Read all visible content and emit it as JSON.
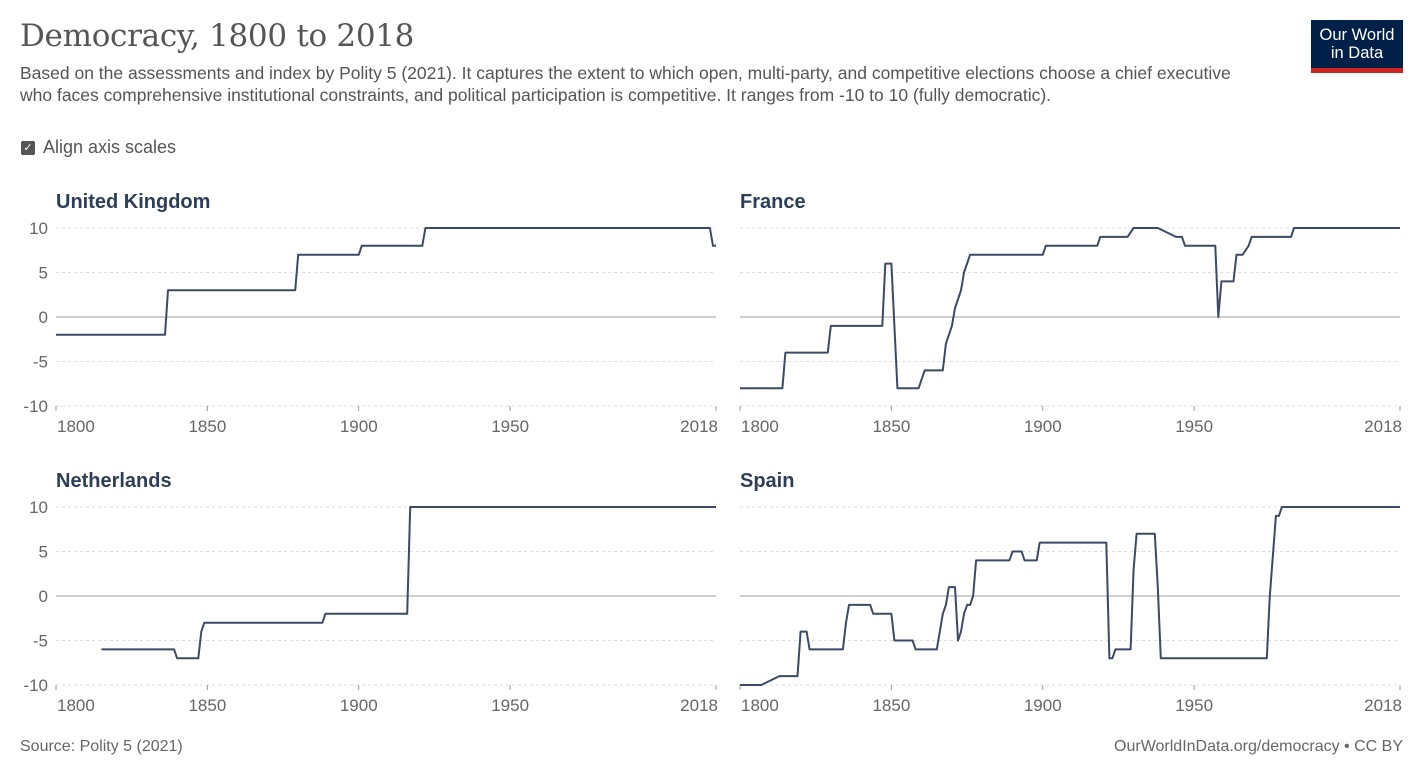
{
  "header": {
    "title": "Democracy, 1800 to 2018",
    "subtitle": "Based on the assessments and index by Polity 5 (2021). It captures the extent to which open, multi-party, and competitive elections choose a chief executive who faces comprehensive institutional constraints, and political participation is competitive. It ranges from -10 to 10 (fully democratic).",
    "logo_line1": "Our World",
    "logo_line2": "in Data"
  },
  "controls": {
    "align_label": "Align axis scales",
    "align_checked": true
  },
  "footer": {
    "source": "Source: Polity 5 (2021)",
    "link": "OurWorldInData.org/democracy • CC BY"
  },
  "colors": {
    "line": "#3c4b63",
    "grid": "#dddddd",
    "zero": "#a0a0a0",
    "axis_text": "#666666",
    "panel_title": "#2d3e58"
  },
  "chart_data": [
    {
      "type": "line",
      "title": "United Kingdom",
      "xlim": [
        1800,
        2018
      ],
      "ylim": [
        -10,
        10
      ],
      "xticks": [
        1800,
        1850,
        1900,
        1950,
        2018
      ],
      "yticks": [
        10,
        5,
        0,
        -5,
        -10
      ],
      "x": [
        1800,
        1836,
        1837,
        1879,
        1880,
        1900,
        1901,
        1921,
        1922,
        2016,
        2017,
        2018
      ],
      "y": [
        -2,
        -2,
        3,
        3,
        7,
        7,
        8,
        8,
        10,
        10,
        8,
        8
      ]
    },
    {
      "type": "line",
      "title": "France",
      "xlim": [
        1800,
        2018
      ],
      "ylim": [
        -10,
        10
      ],
      "xticks": [
        1800,
        1850,
        1900,
        1950,
        2018
      ],
      "yticks": [
        10,
        5,
        0,
        -5,
        -10
      ],
      "x": [
        1800,
        1814,
        1815,
        1829,
        1830,
        1847,
        1848,
        1850,
        1852,
        1859,
        1861,
        1867,
        1868,
        1870,
        1871,
        1873,
        1874,
        1876,
        1900,
        1901,
        1918,
        1919,
        1928,
        1930,
        1938,
        1944,
        1946,
        1947,
        1957,
        1958,
        1959,
        1963,
        1964,
        1966,
        1968,
        1969,
        1982,
        1983,
        2018
      ],
      "y": [
        -8,
        -8,
        -4,
        -4,
        -1,
        -1,
        6,
        6,
        -8,
        -8,
        -6,
        -6,
        -3,
        -1,
        1,
        3,
        5,
        7,
        7,
        8,
        8,
        9,
        9,
        10,
        10,
        9,
        9,
        8,
        8,
        0,
        4,
        4,
        7,
        7,
        8,
        9,
        9,
        10,
        10
      ]
    },
    {
      "type": "line",
      "title": "Netherlands",
      "xlim": [
        1800,
        2018
      ],
      "ylim": [
        -10,
        10
      ],
      "xticks": [
        1800,
        1850,
        1900,
        1950,
        2018
      ],
      "yticks": [
        10,
        5,
        0,
        -5,
        -10
      ],
      "x": [
        1815,
        1839,
        1840,
        1847,
        1848,
        1849,
        1888,
        1889,
        1916,
        1917,
        2018
      ],
      "y": [
        -6,
        -6,
        -7,
        -7,
        -4,
        -3,
        -3,
        -2,
        -2,
        10,
        10
      ]
    },
    {
      "type": "line",
      "title": "Spain",
      "xlim": [
        1800,
        2018
      ],
      "ylim": [
        -10,
        10
      ],
      "xticks": [
        1800,
        1850,
        1900,
        1950,
        2018
      ],
      "yticks": [
        10,
        5,
        0,
        -5,
        -10
      ],
      "x": [
        1800,
        1807,
        1813,
        1819,
        1820,
        1822,
        1823,
        1834,
        1835,
        1836,
        1843,
        1844,
        1850,
        1851,
        1857,
        1858,
        1865,
        1867,
        1868,
        1869,
        1871,
        1872,
        1873,
        1874,
        1875,
        1876,
        1877,
        1878,
        1879,
        1889,
        1890,
        1893,
        1894,
        1898,
        1899,
        1921,
        1922,
        1923,
        1924,
        1929,
        1930,
        1931,
        1937,
        1938,
        1939,
        1974,
        1975,
        1977,
        1978,
        1979,
        2018
      ],
      "y": [
        -10,
        -10,
        -9,
        -9,
        -4,
        -4,
        -6,
        -6,
        -3,
        -1,
        -1,
        -2,
        -2,
        -5,
        -5,
        -6,
        -6,
        -2,
        -1,
        1,
        1,
        -5,
        -4,
        -2,
        -1,
        -1,
        0,
        4,
        4,
        4,
        5,
        5,
        4,
        4,
        6,
        6,
        -7,
        -7,
        -6,
        -6,
        3,
        7,
        7,
        1,
        -7,
        -7,
        0,
        9,
        9,
        10,
        10
      ]
    }
  ]
}
